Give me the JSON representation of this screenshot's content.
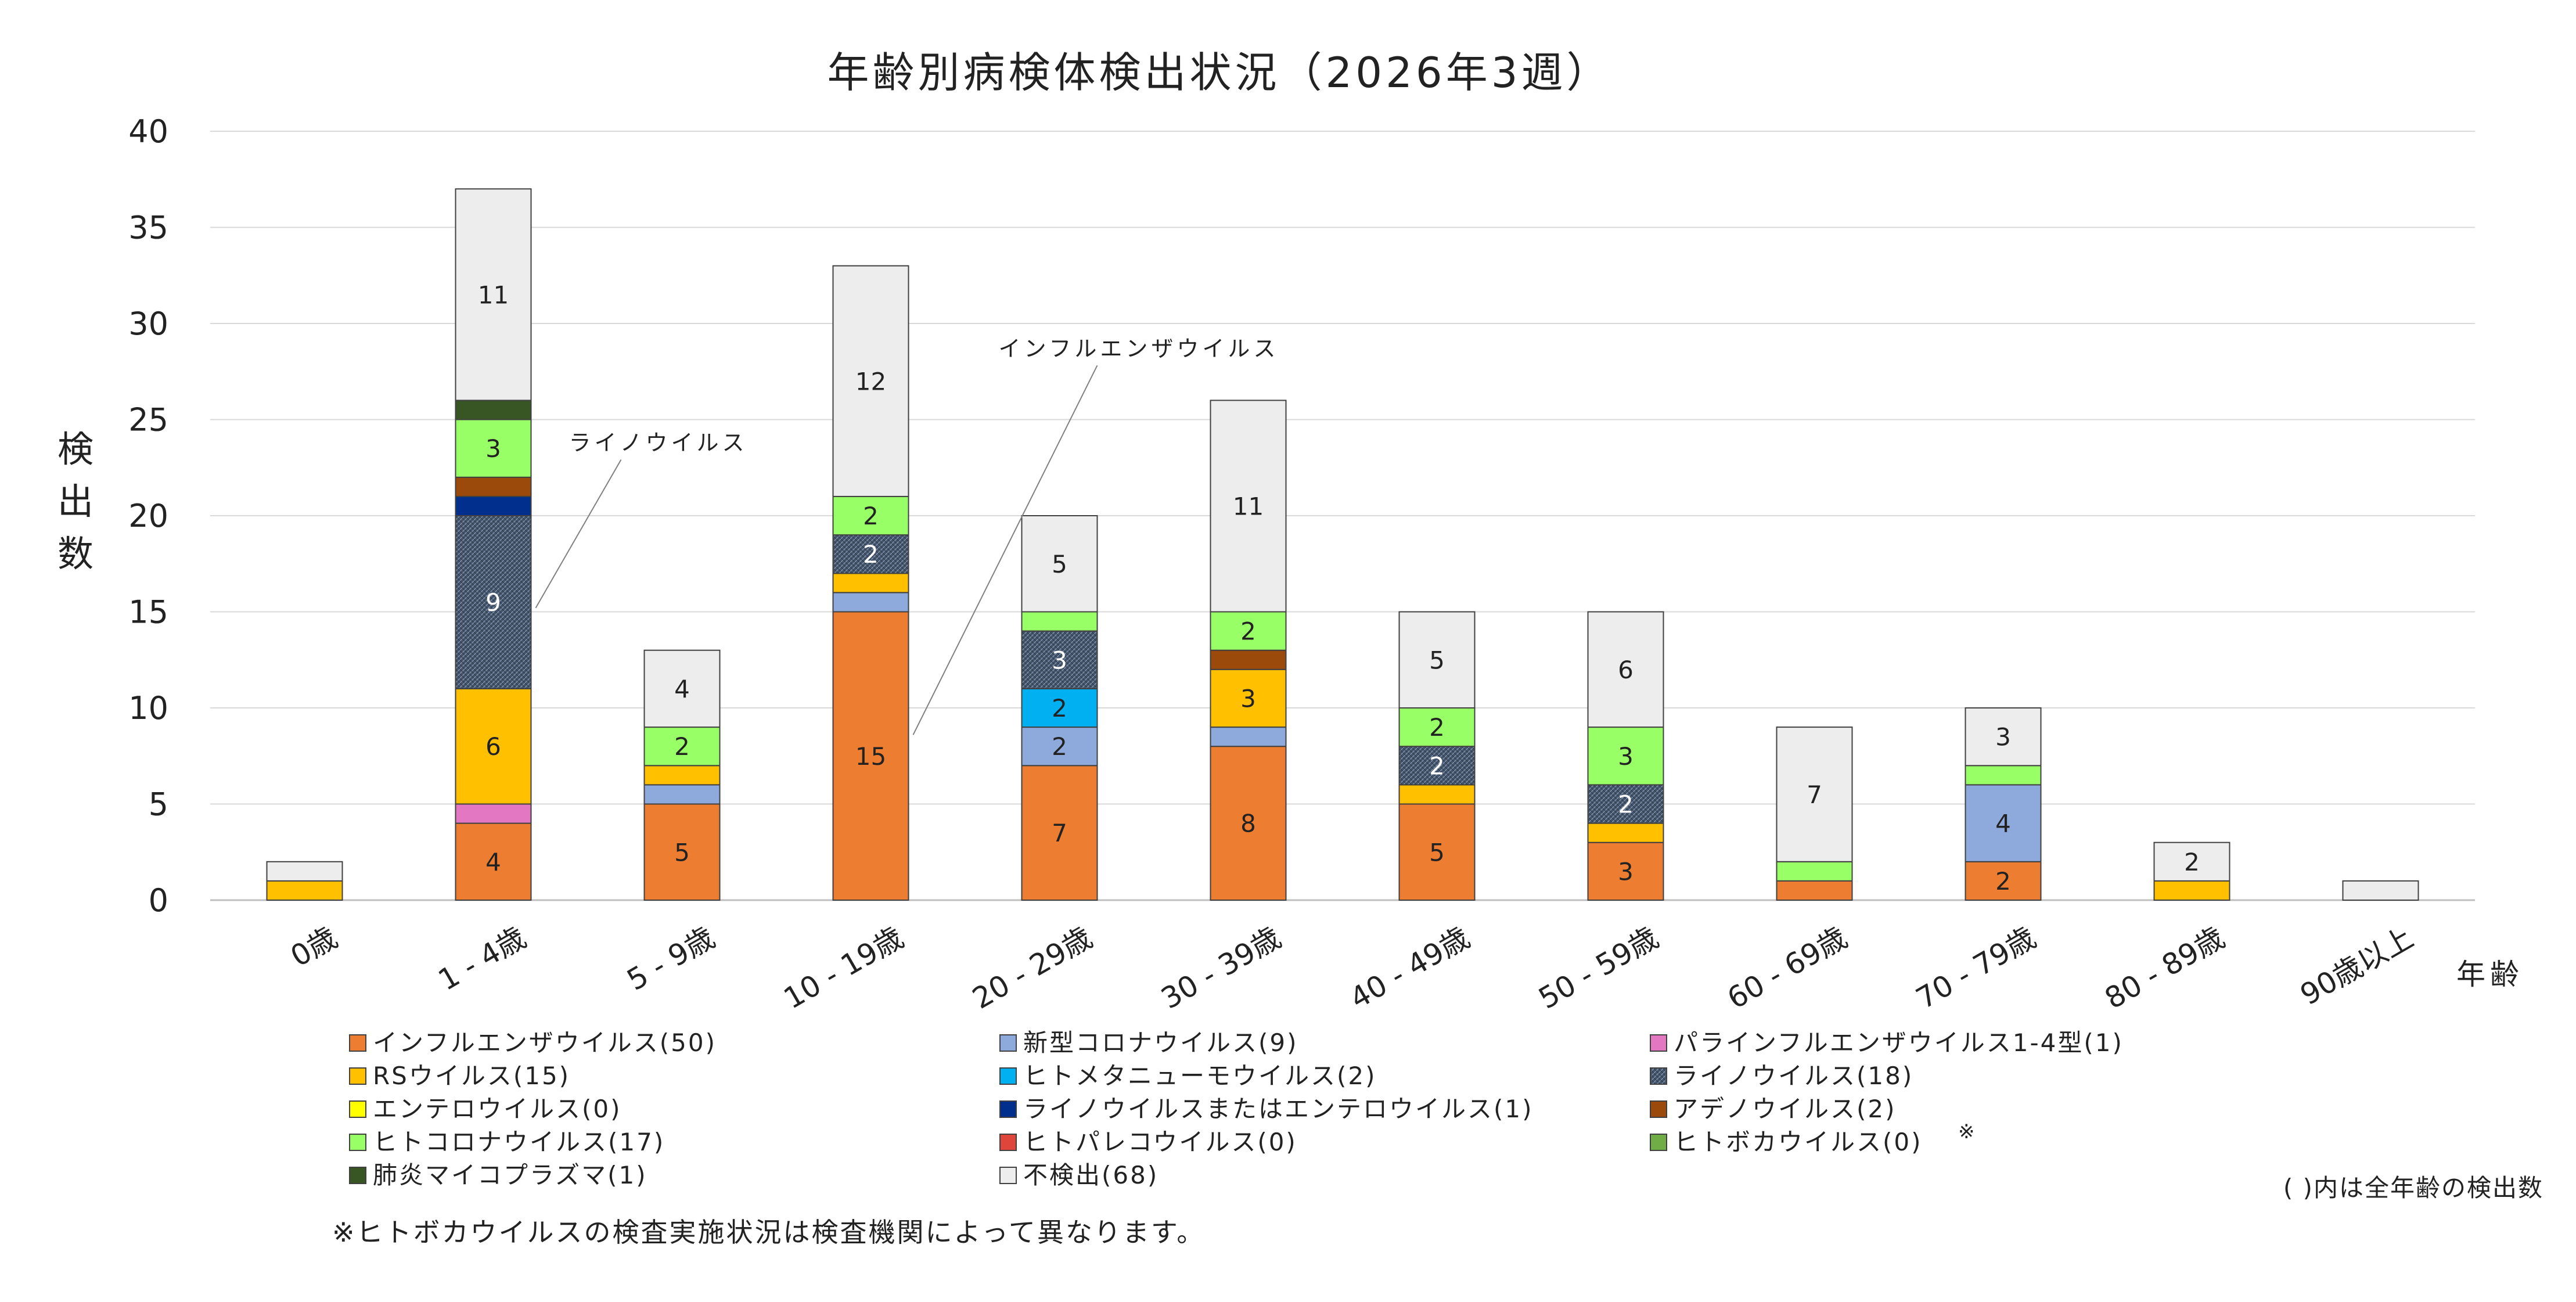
{
  "chart_data": {
    "type": "bar",
    "stacked": true,
    "title": "年齢別病検体検出状況（2026年3週）",
    "ylabel": [
      "検",
      "出",
      "数"
    ],
    "xlabel": "年齢",
    "ylim": [
      0,
      40
    ],
    "yticks": [
      0,
      5,
      10,
      15,
      20,
      25,
      30,
      35,
      40
    ],
    "grid": true,
    "categories": [
      "0歳",
      "1 - 4歳",
      "5 - 9歳",
      "10 - 19歳",
      "20 - 29歳",
      "30 - 39歳",
      "40 - 49歳",
      "50 - 59歳",
      "60 - 69歳",
      "70 - 79歳",
      "80 - 89歳",
      "90歳以上"
    ],
    "series": [
      {
        "name": "インフルエンザウイルス(50)",
        "color": "#ED7D31",
        "values": [
          0,
          4,
          5,
          15,
          7,
          8,
          5,
          3,
          1,
          2,
          0,
          0
        ]
      },
      {
        "name": "新型コロナウイルス(9)",
        "color": "#8EA9DB",
        "values": [
          0,
          0,
          1,
          1,
          2,
          1,
          0,
          0,
          0,
          4,
          0,
          0
        ]
      },
      {
        "name": "パラインフルエンザウイルス1-4型(1)",
        "color": "#E377C2",
        "values": [
          0,
          1,
          0,
          0,
          0,
          0,
          0,
          0,
          0,
          0,
          0,
          0
        ]
      },
      {
        "name": "RSウイルス(15)",
        "color": "#FFC000",
        "values": [
          1,
          6,
          1,
          1,
          0,
          3,
          1,
          1,
          0,
          0,
          1,
          0
        ]
      },
      {
        "name": "ヒトメタニューモウイルス(2)",
        "color": "#00B0F0",
        "values": [
          0,
          0,
          0,
          0,
          2,
          0,
          0,
          0,
          0,
          0,
          0,
          0
        ]
      },
      {
        "name": "ライノウイルス(18)",
        "color": "#44546A",
        "pattern": true,
        "values": [
          0,
          9,
          0,
          2,
          3,
          0,
          2,
          2,
          0,
          0,
          0,
          0
        ]
      },
      {
        "name": "エンテロウイルス(0)",
        "color": "#FFFF00",
        "values": [
          0,
          0,
          0,
          0,
          0,
          0,
          0,
          0,
          0,
          0,
          0,
          0
        ]
      },
      {
        "name": "ライノウイルスまたはエンテロウイルス(1)",
        "color": "#002F8E",
        "values": [
          0,
          1,
          0,
          0,
          0,
          0,
          0,
          0,
          0,
          0,
          0,
          0
        ]
      },
      {
        "name": "アデノウイルス(2)",
        "color": "#9C4A0C",
        "values": [
          0,
          1,
          0,
          0,
          0,
          1,
          0,
          0,
          0,
          0,
          0,
          0
        ]
      },
      {
        "name": "ヒトコロナウイルス(17)",
        "color": "#99FF66",
        "values": [
          0,
          3,
          2,
          2,
          1,
          2,
          2,
          3,
          1,
          1,
          0,
          0
        ]
      },
      {
        "name": "ヒトパレコウイルス(0)",
        "color": "#E0453C",
        "values": [
          0,
          0,
          0,
          0,
          0,
          0,
          0,
          0,
          0,
          0,
          0,
          0
        ]
      },
      {
        "name": "ヒトボカウイルス(0)",
        "color": "#70AD47",
        "values": [
          0,
          0,
          0,
          0,
          0,
          0,
          0,
          0,
          0,
          0,
          0,
          0
        ]
      },
      {
        "name": "肺炎マイコプラズマ(1)",
        "color": "#375623",
        "values": [
          0,
          1,
          0,
          0,
          0,
          0,
          0,
          0,
          0,
          0,
          0,
          0
        ]
      },
      {
        "name": "不検出(68)",
        "color": "#EDEDED",
        "values": [
          1,
          11,
          4,
          12,
          5,
          11,
          5,
          6,
          7,
          3,
          2,
          1
        ]
      }
    ],
    "data_labels": [
      {
        "category": 1,
        "series": 0,
        "text": "4"
      },
      {
        "category": 1,
        "series": 3,
        "text": "6"
      },
      {
        "category": 1,
        "series": 5,
        "text": "9"
      },
      {
        "category": 1,
        "series": 9,
        "text": "3"
      },
      {
        "category": 1,
        "series": 13,
        "text": "11"
      },
      {
        "category": 2,
        "series": 0,
        "text": "5"
      },
      {
        "category": 2,
        "series": 9,
        "text": "2"
      },
      {
        "category": 2,
        "series": 13,
        "text": "4"
      },
      {
        "category": 3,
        "series": 0,
        "text": "15"
      },
      {
        "category": 3,
        "series": 5,
        "text": "2"
      },
      {
        "category": 3,
        "series": 9,
        "text": "2"
      },
      {
        "category": 3,
        "series": 13,
        "text": "12"
      },
      {
        "category": 4,
        "series": 0,
        "text": "7"
      },
      {
        "category": 4,
        "series": 1,
        "text": "2"
      },
      {
        "category": 4,
        "series": 4,
        "text": "2"
      },
      {
        "category": 4,
        "series": 5,
        "text": "3"
      },
      {
        "category": 4,
        "series": 13,
        "text": "5"
      },
      {
        "category": 5,
        "series": 0,
        "text": "8"
      },
      {
        "category": 5,
        "series": 3,
        "text": "3"
      },
      {
        "category": 5,
        "series": 9,
        "text": "2"
      },
      {
        "category": 5,
        "series": 13,
        "text": "11"
      },
      {
        "category": 6,
        "series": 0,
        "text": "5"
      },
      {
        "category": 6,
        "series": 5,
        "text": "2"
      },
      {
        "category": 6,
        "series": 9,
        "text": "2"
      },
      {
        "category": 6,
        "series": 13,
        "text": "5"
      },
      {
        "category": 7,
        "series": 0,
        "text": "3"
      },
      {
        "category": 7,
        "series": 5,
        "text": "2"
      },
      {
        "category": 7,
        "series": 9,
        "text": "3"
      },
      {
        "category": 7,
        "series": 13,
        "text": "6"
      },
      {
        "category": 8,
        "series": 13,
        "text": "7"
      },
      {
        "category": 9,
        "series": 0,
        "text": "2"
      },
      {
        "category": 9,
        "series": 1,
        "text": "4"
      },
      {
        "category": 9,
        "series": 13,
        "text": "3"
      },
      {
        "category": 10,
        "series": 13,
        "text": "2"
      }
    ],
    "annotations": [
      {
        "text": "ライノウイルス",
        "category": 1,
        "series": 5
      },
      {
        "text": "インフルエンザウイルス",
        "category": 3,
        "series": 0
      }
    ],
    "legend_position": "bottom",
    "legend_note_mark": "※",
    "legend_note": "( )内は全年齢の検出数",
    "footnote": "※ヒトボカウイルスの検査実施状況は検査機関によって異なります。"
  }
}
